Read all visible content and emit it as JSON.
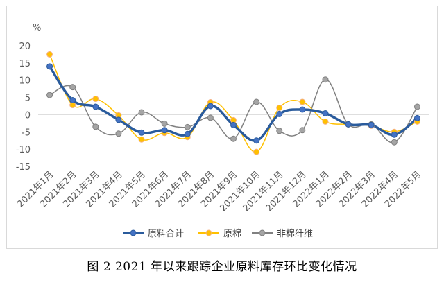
{
  "caption": "图 2   2021 年以来跟踪企业原料库存环比变化情况",
  "chart_data": {
    "type": "line",
    "unit_label": "%",
    "categories": [
      "2021年1月",
      "2021年2月",
      "2021年3月",
      "2021年4月",
      "2021年5月",
      "2021年6月",
      "2021年7月",
      "2021年8月",
      "2021年9月",
      "2021年10月",
      "2021年11月",
      "2021年12月",
      "2022年1月",
      "2022年2月",
      "2022年3月",
      "2022年4月",
      "2022年5月"
    ],
    "ylim": [
      -15,
      20
    ],
    "yticks": [
      20,
      15,
      10,
      5,
      0,
      -5,
      -10,
      -15
    ],
    "grid": false,
    "legend_position": "bottom",
    "series": [
      {
        "name": "原料合计",
        "color": "#2a5b9c",
        "marker_fill": "#4472c4",
        "values": [
          14.0,
          4.2,
          2.3,
          -1.5,
          -5.2,
          -4.5,
          -5.6,
          2.5,
          -3.0,
          -7.5,
          0.2,
          1.5,
          0.4,
          -2.8,
          -3.0,
          -5.8,
          -1.0
        ]
      },
      {
        "name": "原棉",
        "color": "#ffc000",
        "marker_fill": "#ffc000",
        "values": [
          17.5,
          2.8,
          4.6,
          -0.2,
          -7.2,
          -5.3,
          -6.5,
          3.6,
          -1.6,
          -10.8,
          2.0,
          3.7,
          -2.0,
          -2.8,
          -3.2,
          -5.0,
          -2.0
        ]
      },
      {
        "name": "非棉纤维",
        "color": "#808080",
        "marker_fill": "#a5a5a5",
        "values": [
          5.7,
          8.0,
          -3.5,
          -5.5,
          0.7,
          -2.6,
          -3.6,
          -0.9,
          -7.0,
          3.7,
          -4.7,
          -4.5,
          10.2,
          -2.8,
          -2.8,
          -8.0,
          2.3
        ]
      }
    ]
  }
}
